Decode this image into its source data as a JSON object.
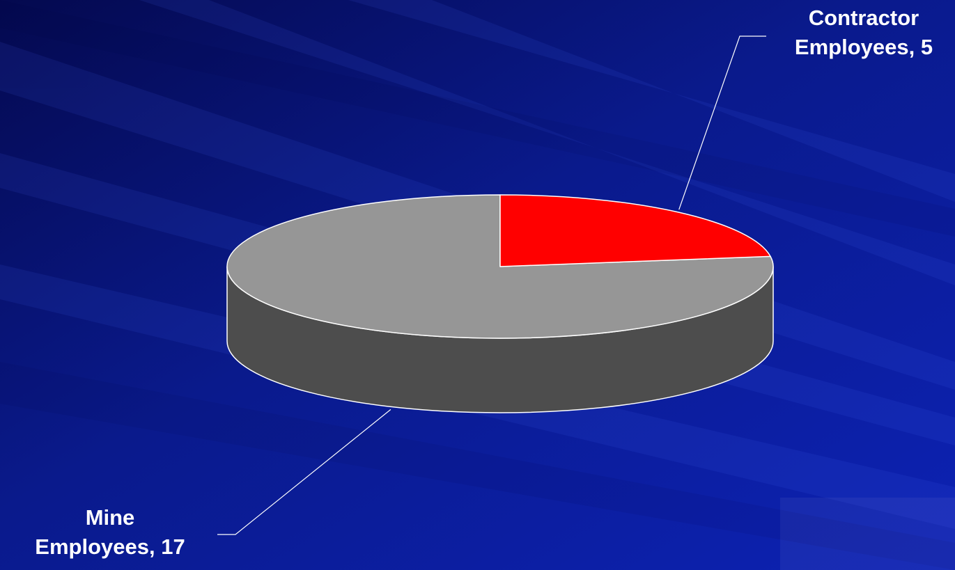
{
  "chart_data": {
    "type": "pie",
    "style": "3d",
    "title": "",
    "legend": "none",
    "slices": [
      {
        "category": "Contractor Employees",
        "value": 5,
        "label_lines": [
          "Contractor",
          "Employees, 5"
        ]
      },
      {
        "category": "Mine Employees",
        "value": 17,
        "label_lines": [
          "Mine",
          "Employees, 17"
        ]
      }
    ],
    "colors": {
      "contractor_top": "#ff0000",
      "contractor_side": "#a00000",
      "mine_top": "#969696",
      "mine_side": "#4d4d4d",
      "background": "#0a1a8c"
    }
  }
}
